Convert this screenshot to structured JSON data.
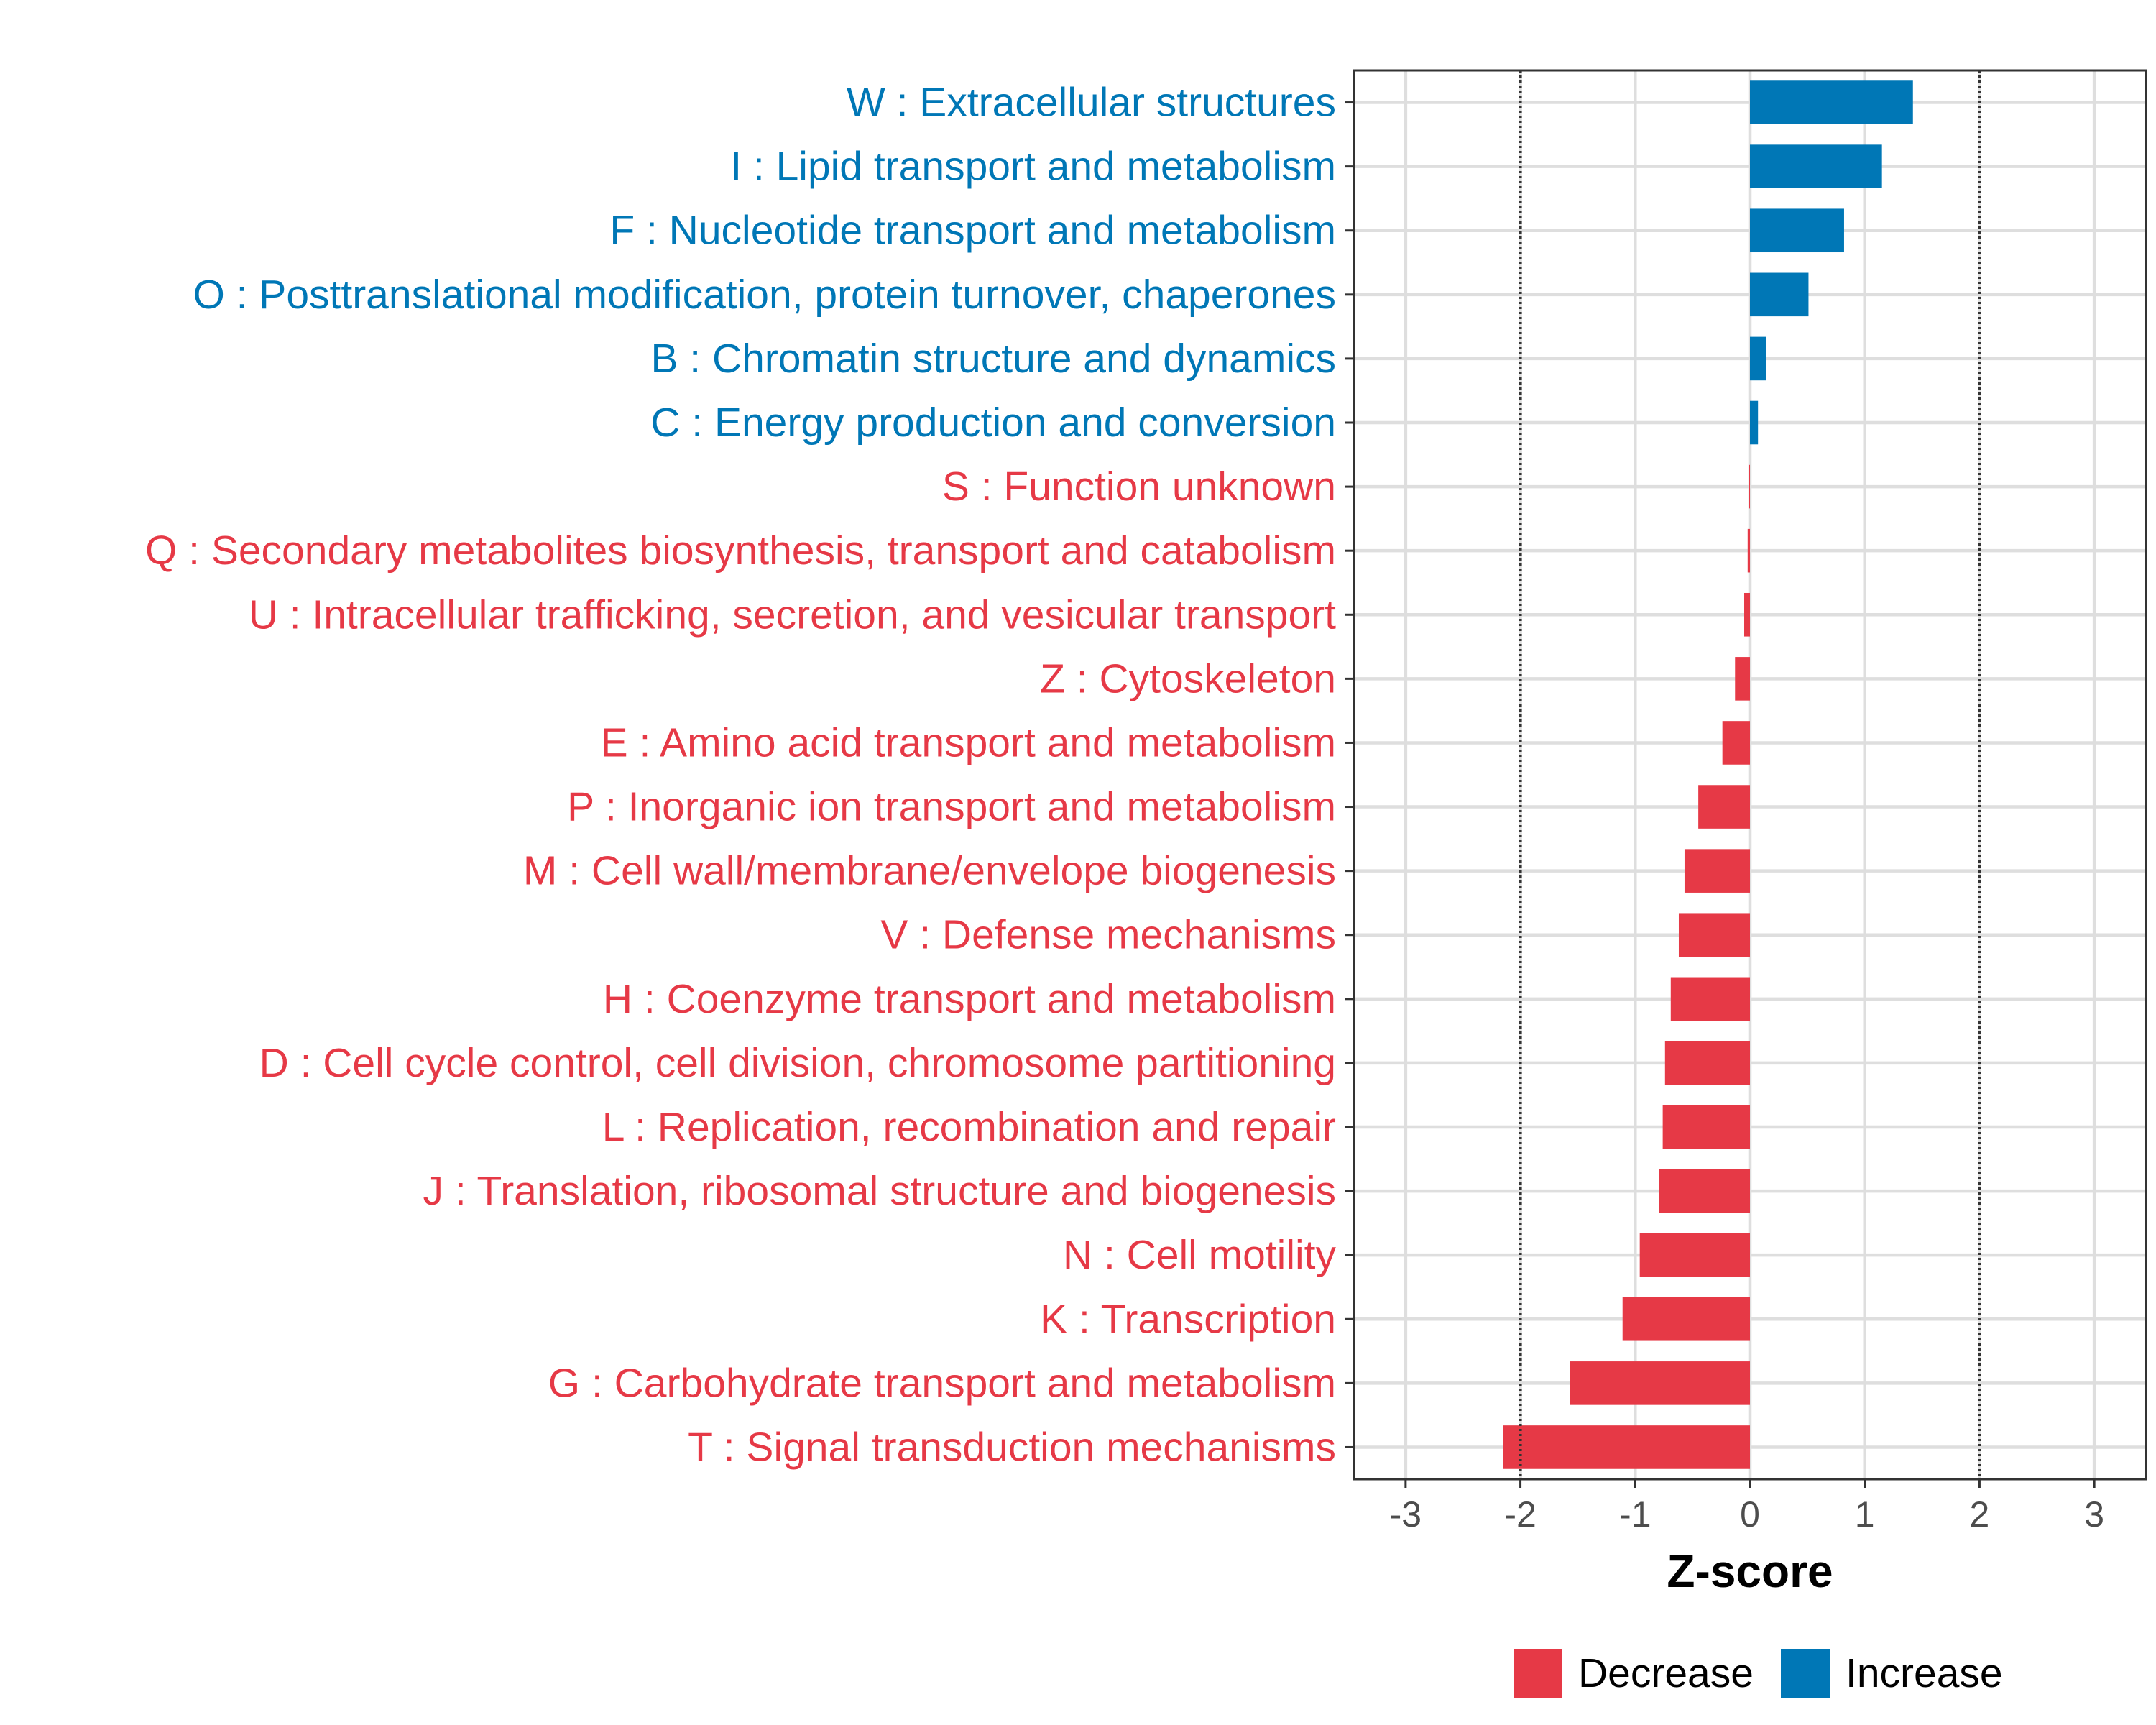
{
  "chart_data": {
    "type": "bar",
    "orientation": "horizontal",
    "xlabel": "Z-score",
    "xlim": [
      -3.45,
      3.45
    ],
    "xticks": [
      -3,
      -2,
      -1,
      0,
      1,
      2,
      3
    ],
    "xtick_labels": [
      "-3",
      "-2",
      "-1",
      "0",
      "1",
      "2",
      "3"
    ],
    "reference_lines": [
      -2,
      2
    ],
    "grid": true,
    "legend_position": "bottom",
    "colors": {
      "Decrease": "#E63946",
      "Increase": "#0077B6"
    },
    "legend": [
      {
        "label": "Decrease",
        "color": "#E63946"
      },
      {
        "label": "Increase",
        "color": "#0077B6"
      }
    ],
    "categories": [
      "W : Extracellular structures",
      "I : Lipid transport and metabolism",
      "F : Nucleotide transport and metabolism",
      "O : Posttranslational modification, protein turnover, chaperones",
      "B : Chromatin structure and dynamics",
      "C : Energy production and conversion",
      "S : Function unknown",
      "Q : Secondary metabolites biosynthesis, transport and catabolism",
      "U : Intracellular trafficking, secretion, and vesicular transport",
      "Z : Cytoskeleton",
      "E : Amino acid transport and metabolism",
      "P : Inorganic ion transport and metabolism",
      "M : Cell wall/membrane/envelope biogenesis",
      "V : Defense mechanisms",
      "H : Coenzyme transport and metabolism",
      "D : Cell cycle control, cell division, chromosome partitioning",
      "L : Replication, recombination and repair",
      "J : Translation, ribosomal structure and biogenesis",
      "N : Cell motility",
      "K : Transcription",
      "G : Carbohydrate transport and metabolism",
      "T : Signal transduction mechanisms"
    ],
    "values": [
      1.42,
      1.15,
      0.82,
      0.51,
      0.14,
      0.07,
      -0.01,
      -0.02,
      -0.05,
      -0.13,
      -0.24,
      -0.45,
      -0.57,
      -0.62,
      -0.69,
      -0.74,
      -0.76,
      -0.79,
      -0.96,
      -1.11,
      -1.57,
      -2.15
    ],
    "groups": [
      "Increase",
      "Increase",
      "Increase",
      "Increase",
      "Increase",
      "Increase",
      "Decrease",
      "Decrease",
      "Decrease",
      "Decrease",
      "Decrease",
      "Decrease",
      "Decrease",
      "Decrease",
      "Decrease",
      "Decrease",
      "Decrease",
      "Decrease",
      "Decrease",
      "Decrease",
      "Decrease",
      "Decrease"
    ]
  }
}
